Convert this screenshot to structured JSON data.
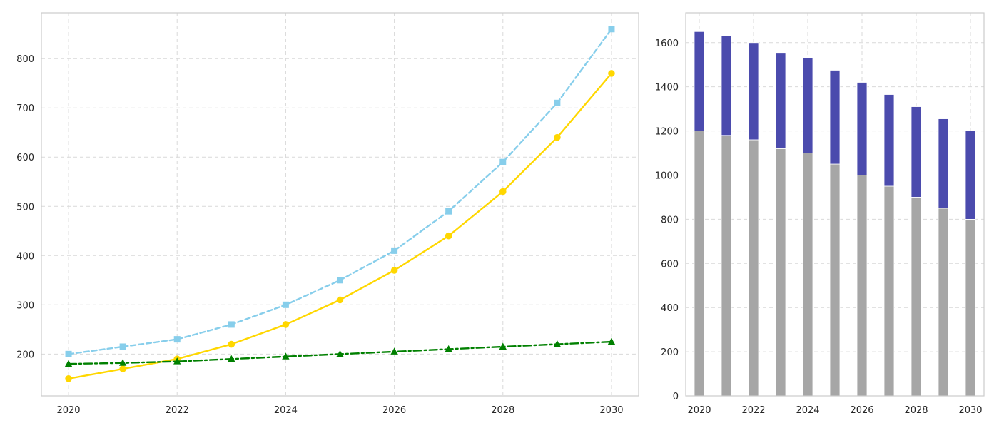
{
  "chart_data": [
    {
      "type": "line",
      "title": "",
      "xlabel": "",
      "ylabel": "",
      "x": [
        2020,
        2021,
        2022,
        2023,
        2024,
        2025,
        2026,
        2027,
        2028,
        2029,
        2030
      ],
      "xlim": [
        2019.5,
        2030.5
      ],
      "ylim": [
        115,
        893
      ],
      "xticks": [
        2020,
        2022,
        2024,
        2026,
        2028,
        2030
      ],
      "yticks": [
        200,
        300,
        400,
        500,
        600,
        700,
        800
      ],
      "grid": true,
      "legend": "none",
      "series": [
        {
          "color": "#87ceeb",
          "line_style": "dashed",
          "marker": "square",
          "values": [
            200,
            215,
            230,
            260,
            300,
            350,
            410,
            490,
            590,
            710,
            860
          ]
        },
        {
          "color": "#ffd700",
          "line_style": "solid",
          "marker": "circle",
          "values": [
            150,
            170,
            190,
            220,
            260,
            310,
            370,
            440,
            530,
            640,
            770
          ]
        },
        {
          "color": "#008000",
          "line_style": "dash-dot",
          "marker": "triangle",
          "values": [
            180,
            182,
            185,
            190,
            195,
            200,
            205,
            210,
            215,
            220,
            225
          ]
        }
      ]
    },
    {
      "type": "bar",
      "stacked": true,
      "title": "",
      "xlabel": "",
      "ylabel": "",
      "categories": [
        2020,
        2021,
        2022,
        2023,
        2024,
        2025,
        2026,
        2027,
        2028,
        2029,
        2030
      ],
      "xlim": [
        2019.5,
        2030.5
      ],
      "ylim": [
        0,
        1735
      ],
      "xticks": [
        2020,
        2022,
        2024,
        2026,
        2028,
        2030
      ],
      "yticks": [
        0,
        200,
        400,
        600,
        800,
        1000,
        1200,
        1400,
        1600
      ],
      "grid": true,
      "legend": "none",
      "series": [
        {
          "color": "#a6a6a6",
          "values": [
            1200,
            1180,
            1160,
            1120,
            1100,
            1050,
            1000,
            950,
            900,
            850,
            800
          ]
        },
        {
          "color": "#4b4bad",
          "values": [
            450,
            450,
            440,
            435,
            430,
            425,
            420,
            415,
            410,
            405,
            400
          ]
        }
      ]
    }
  ]
}
